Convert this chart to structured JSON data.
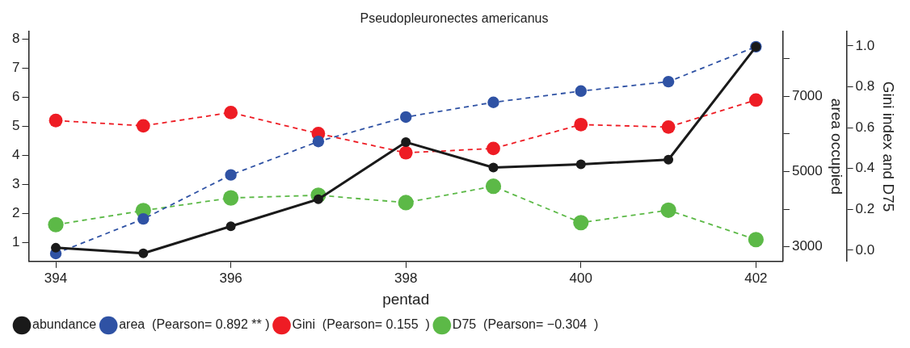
{
  "chart_data": {
    "type": "line",
    "title": "Pseudopleuronectes americanus",
    "xlabel": "pentad",
    "y2label": "area occupied",
    "y3label": "Gini index and D75",
    "x": [
      394,
      395,
      396,
      397,
      398,
      399,
      400,
      401,
      402
    ],
    "series": [
      {
        "name": "abundance",
        "color": "#1a1a1a",
        "line_style": "solid",
        "values": [
          0.82,
          0.63,
          1.56,
          2.49,
          4.45,
          3.58,
          3.69,
          3.85,
          7.73
        ]
      },
      {
        "name": "area  (Pearson= 0.892 ** )",
        "color": "#2f52a4",
        "line_style": "dashed",
        "axis": "y2",
        "values": [
          2820,
          3740,
          4910,
          5800,
          6450,
          6840,
          7140,
          7390,
          8320
        ]
      },
      {
        "name": "Gini  (Pearson= 0.155  )",
        "color": "#ee1c24",
        "line_style": "dashed",
        "axis": "y3",
        "values": [
          0.635,
          0.609,
          0.674,
          0.571,
          0.477,
          0.498,
          0.615,
          0.603,
          0.735
        ]
      },
      {
        "name": "D75  (Pearson= −0.304  )",
        "color": "#5cb947",
        "line_style": "dashed",
        "axis": "y3",
        "values": [
          0.125,
          0.194,
          0.256,
          0.269,
          0.233,
          0.313,
          0.135,
          0.196,
          0.052
        ]
      }
    ],
    "xlim": [
      393.69,
      402.31
    ],
    "xticks": [
      394,
      396,
      398,
      400,
      402
    ],
    "ylim": [
      0.35,
      8.25
    ],
    "yticks": [
      1,
      2,
      3,
      4,
      5,
      6,
      7,
      8
    ],
    "y2lim": [
      2610,
      8720
    ],
    "y2ticks": [
      3000,
      {
        "value": 4000,
        "label": null
      },
      5000,
      {
        "value": 6000,
        "label": null
      },
      7000,
      {
        "value": 8000,
        "label": null
      }
    ],
    "y3lim": [
      -0.055,
      1.07
    ],
    "y3ticks": [
      {
        "value": 0,
        "label": "0.0"
      },
      0.2,
      0.4,
      0.6,
      0.8,
      {
        "value": 1,
        "label": "1.0"
      }
    ],
    "marker": "circle",
    "grid": false,
    "legend": "bottom left"
  }
}
